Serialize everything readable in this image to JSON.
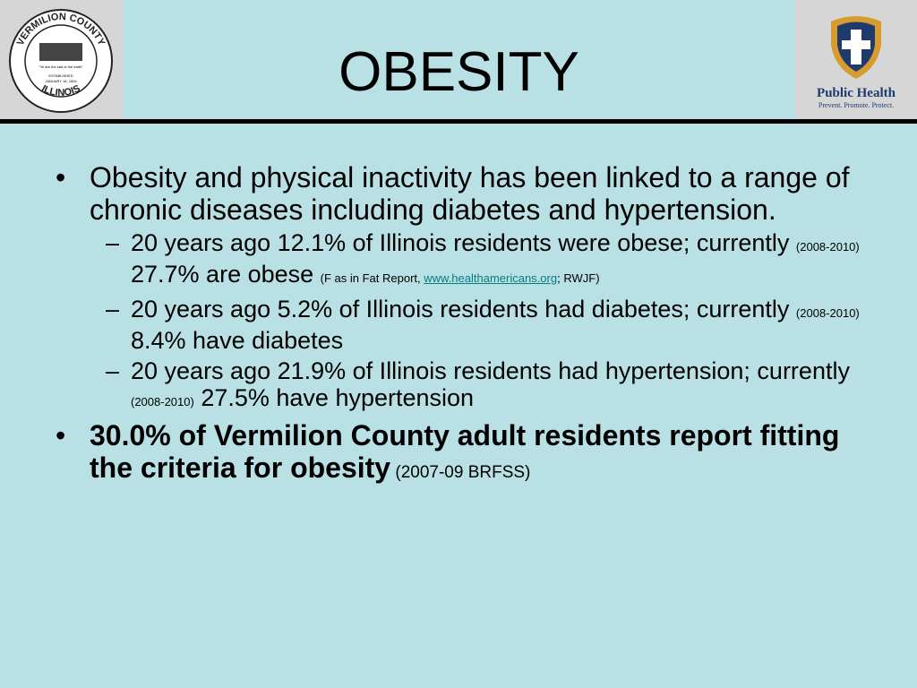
{
  "header": {
    "title": "OBESITY",
    "left_logo": {
      "top": "VERMILION COUNTY",
      "bottom": "ILLINOIS",
      "motto": "\"Ye are the salt of the earth\"",
      "established": "ESTABLISHED",
      "date": "JANUARY 18, 1826"
    },
    "right_logo": {
      "name": "Public Health",
      "tagline": "Prevent. Promote. Protect."
    }
  },
  "bullets": [
    {
      "segments": [
        {
          "text": "Obesity and physical inactivity has been linked to a range of chronic diseases including diabetes and hypertension.",
          "style": "normal"
        }
      ],
      "subitems": [
        {
          "segments": [
            {
              "text": "20 years ago 12.1% of Illinois residents were obese; currently ",
              "style": "normal"
            },
            {
              "text": "(2008-2010)",
              "style": "small"
            },
            {
              "text": " 27.7% are obese ",
              "style": "normal"
            },
            {
              "text": "(F as in Fat Report, ",
              "style": "small"
            },
            {
              "text": "www.healthamericans.org",
              "style": "link"
            },
            {
              "text": "; RWJF)",
              "style": "small"
            }
          ]
        },
        {
          "segments": [
            {
              "text": "20 years ago 5.2% of Illinois residents had diabetes; currently ",
              "style": "normal"
            },
            {
              "text": "(2008-2010)",
              "style": "small"
            },
            {
              "text": " 8.4% have diabetes",
              "style": "normal"
            }
          ]
        },
        {
          "segments": [
            {
              "text": "20 years ago 21.9% of Illinois residents had hypertension; currently ",
              "style": "normal"
            },
            {
              "text": "(2008-2010)",
              "style": "small"
            },
            {
              "text": " 27.5% have hypertension",
              "style": "normal"
            }
          ]
        }
      ]
    },
    {
      "segments": [
        {
          "text": "30.0% of Vermilion County adult residents report fitting the criteria for obesity",
          "style": "bold"
        },
        {
          "text": " (2007-09 BRFSS)",
          "style": "medium"
        }
      ],
      "subitems": []
    }
  ]
}
